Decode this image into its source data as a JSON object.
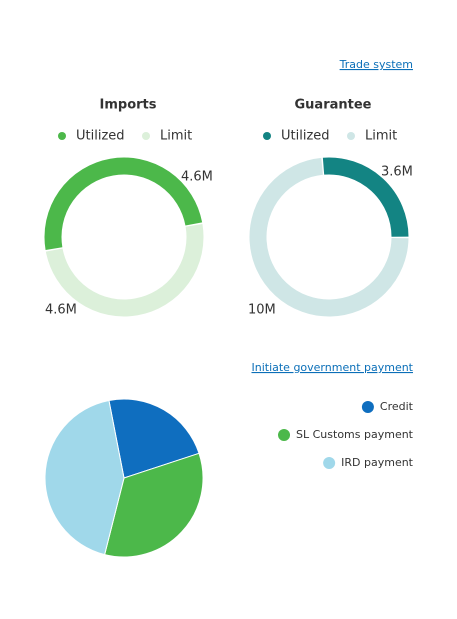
{
  "links": {
    "trade_system": "Trade system",
    "government_payment": "Initiate government payment"
  },
  "chart_data": [
    {
      "type": "donut",
      "title": "Imports",
      "categories": [
        "Utilized",
        "Limit"
      ],
      "values": [
        4600000,
        4600000
      ],
      "value_labels": [
        "4.6M",
        "4.6M"
      ],
      "colors": [
        "#4cb84a",
        "#dcf0da"
      ]
    },
    {
      "type": "donut",
      "title": "Guarantee",
      "categories": [
        "Utilized",
        "Limit"
      ],
      "values": [
        3600000,
        10000000
      ],
      "value_labels": [
        "3.6M",
        "10M"
      ],
      "colors": [
        "#138483",
        "#cfe6e6"
      ]
    },
    {
      "type": "pie",
      "categories": [
        "Credit",
        "SL Customs payment",
        "IRD payment"
      ],
      "values": [
        23,
        34,
        43
      ],
      "colors": [
        "#0f6ebf",
        "#4cb84a",
        "#a0d8ea"
      ]
    }
  ]
}
